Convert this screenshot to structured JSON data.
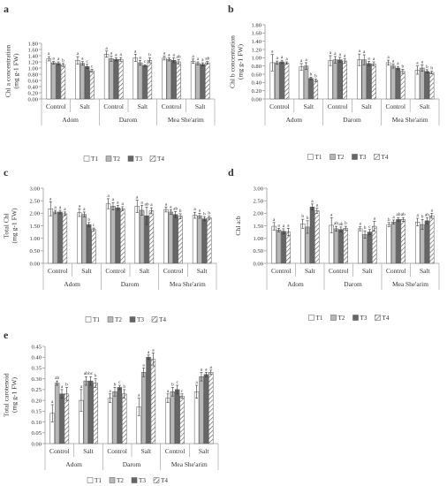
{
  "styles": {
    "T1": {
      "fill": "#ffffff"
    },
    "T2": {
      "fill": "#b8b8b8"
    },
    "T3": {
      "fill": "#666666"
    },
    "T4": {
      "fill": "#ffffff",
      "hatch": true
    }
  },
  "chart_data": [
    {
      "type": "bar",
      "panel_letter": "a",
      "ylabel_lines": [
        "Chl a concentration",
        "(mg g-1 FW)"
      ],
      "ylim": [
        0,
        1.8
      ],
      "yticks": [
        "0.00",
        "0.20",
        "0.40",
        "0.60",
        "0.80",
        "1.00",
        "1.20",
        "1.40",
        "1.60",
        "1.80"
      ],
      "groups": [
        "Adom",
        "Darom",
        "Mea She'arim"
      ],
      "conditions": [
        "Control",
        "Salt"
      ],
      "legend": [
        "T1",
        "T2",
        "T3",
        "T4"
      ],
      "values": [
        [
          1.3,
          1.17,
          1.15,
          1.1
        ],
        [
          1.25,
          1.15,
          1.05,
          0.91
        ],
        [
          1.45,
          1.3,
          1.28,
          1.28
        ],
        [
          1.33,
          1.17,
          1.08,
          1.25
        ],
        [
          1.32,
          1.28,
          1.25,
          1.2
        ],
        [
          1.22,
          1.15,
          1.12,
          1.17
        ]
      ],
      "errors": [
        [
          0.07,
          0.04,
          0.05,
          0.05
        ],
        [
          0.12,
          0.06,
          0.07,
          0.05
        ],
        [
          0.1,
          0.08,
          0.05,
          0.06
        ],
        [
          0.12,
          0.08,
          0.03,
          0.08
        ],
        [
          0.06,
          0.05,
          0.08,
          0.07
        ],
        [
          0.07,
          0.05,
          0.05,
          0.04
        ]
      ],
      "letters": [
        [
          "a",
          "a",
          "a",
          "b"
        ],
        [
          "a",
          "a",
          "c",
          "c"
        ],
        [
          "a",
          "a",
          "a",
          "a"
        ],
        [
          "a",
          "a",
          "c",
          "b"
        ],
        [
          "a",
          "a",
          "a",
          "ab"
        ],
        [
          "a",
          "a",
          "a",
          "ab"
        ]
      ]
    },
    {
      "type": "bar",
      "panel_letter": "b",
      "ylabel_lines": [
        "Chl b concentration",
        "(mg g-1 FW)"
      ],
      "ylim": [
        0,
        1.8
      ],
      "yticks": [
        "0.00",
        "0.20",
        "0.40",
        "0.60",
        "0.80",
        "1.00",
        "1.20",
        "1.40",
        "1.60",
        "1.80"
      ],
      "groups": [
        "Adom",
        "Darom",
        "Mea She'arim"
      ],
      "conditions": [
        "Control",
        "Salt"
      ],
      "legend": [
        "T1",
        "T2",
        "T3",
        "T4"
      ],
      "values": [
        [
          0.88,
          0.88,
          0.9,
          0.87
        ],
        [
          0.78,
          0.8,
          0.5,
          0.45
        ],
        [
          0.93,
          0.95,
          0.95,
          0.92
        ],
        [
          0.95,
          0.95,
          0.86,
          0.85
        ],
        [
          0.88,
          0.8,
          0.75,
          0.67
        ],
        [
          0.7,
          0.75,
          0.67,
          0.64
        ]
      ],
      "errors": [
        [
          0.2,
          0.04,
          0.04,
          0.03
        ],
        [
          0.08,
          0.08,
          0.03,
          0.03
        ],
        [
          0.12,
          0.08,
          0.06,
          0.05
        ],
        [
          0.14,
          0.12,
          0.05,
          0.05
        ],
        [
          0.06,
          0.05,
          0.04,
          0.05
        ],
        [
          0.1,
          0.08,
          0.04,
          0.03
        ]
      ],
      "letters": [
        [
          "a",
          "a",
          "a",
          "a"
        ],
        [
          "a",
          "a",
          "b",
          "b"
        ],
        [
          "a",
          "a",
          "a",
          "a"
        ],
        [
          "a",
          "a",
          "a",
          "a"
        ],
        [
          "a",
          "a",
          "a",
          "b"
        ],
        [
          "a",
          "a",
          "b",
          "b"
        ]
      ]
    },
    {
      "type": "bar",
      "panel_letter": "c",
      "ylabel_lines": [
        "Total Chl",
        "(mg g-1 FW)"
      ],
      "ylim": [
        0,
        3
      ],
      "yticks": [
        "0.00",
        "0.50",
        "1.00",
        "1.50",
        "2.00",
        "2.50",
        "3.00"
      ],
      "groups": [
        "Adom",
        "Darom",
        "Mea She'arim"
      ],
      "conditions": [
        "Control",
        "Salt"
      ],
      "legend": [
        "T1",
        "T2",
        "T3",
        "T4"
      ],
      "values": [
        [
          2.18,
          2.05,
          2.05,
          1.98
        ],
        [
          2.02,
          1.95,
          1.55,
          1.35
        ],
        [
          2.38,
          2.28,
          2.22,
          2.18
        ],
        [
          2.28,
          2.12,
          1.9,
          2.1
        ],
        [
          2.15,
          2.05,
          1.95,
          1.88
        ],
        [
          1.92,
          1.9,
          1.78,
          1.82
        ]
      ],
      "errors": [
        [
          0.28,
          0.07,
          0.07,
          0.07
        ],
        [
          0.15,
          0.1,
          0.08,
          0.06
        ],
        [
          0.2,
          0.15,
          0.1,
          0.08
        ],
        [
          0.25,
          0.2,
          0.35,
          0.12
        ],
        [
          0.1,
          0.09,
          0.12,
          0.1
        ],
        [
          0.12,
          0.1,
          0.08,
          0.06
        ]
      ],
      "letters": [
        [
          "a",
          "a",
          "a",
          "a"
        ],
        [
          "a",
          "a",
          "b",
          "c"
        ],
        [
          "a",
          "a",
          "a",
          "a"
        ],
        [
          "a",
          "a",
          "ab",
          "a"
        ],
        [
          "a",
          "a",
          "ab",
          "b"
        ],
        [
          "a",
          "a",
          "b",
          "b"
        ]
      ]
    },
    {
      "type": "bar",
      "panel_letter": "d",
      "ylabel_lines": [
        "Chl a:b"
      ],
      "ylim": [
        0,
        3
      ],
      "yticks": [
        "0.00",
        "0.50",
        "1.00",
        "1.50",
        "2.00",
        "2.50",
        "3.00"
      ],
      "groups": [
        "Adom",
        "Darom",
        "Mea She'arim"
      ],
      "conditions": [
        "Control",
        "Salt"
      ],
      "legend": [
        "T1",
        "T2",
        "T3",
        "T4"
      ],
      "values": [
        [
          1.48,
          1.33,
          1.28,
          1.25
        ],
        [
          1.58,
          1.45,
          2.25,
          2.1
        ],
        [
          1.52,
          1.38,
          1.35,
          1.4
        ],
        [
          1.38,
          1.15,
          1.25,
          1.48
        ],
        [
          1.55,
          1.65,
          1.75,
          1.75
        ],
        [
          1.65,
          1.55,
          1.7,
          1.9
        ]
      ],
      "errors": [
        [
          0.15,
          0.07,
          0.1,
          0.15
        ],
        [
          0.18,
          0.25,
          0.12,
          0.1
        ],
        [
          0.3,
          0.1,
          0.1,
          0.08
        ],
        [
          0.08,
          0.15,
          0.1,
          0.2
        ],
        [
          0.08,
          0.08,
          0.08,
          0.08
        ],
        [
          0.15,
          0.2,
          0.12,
          0.1
        ]
      ],
      "letters": [
        [
          "a",
          "a",
          "a",
          "a"
        ],
        [
          "b",
          "b",
          "a",
          "a"
        ],
        [
          "a",
          "ab",
          "ab",
          "b"
        ],
        [
          "a",
          "b",
          "c",
          "a"
        ],
        [
          "b",
          "a",
          "ab",
          "ab"
        ],
        [
          "a",
          "b",
          "ab",
          "a"
        ]
      ]
    },
    {
      "type": "bar",
      "panel_letter": "e",
      "ylabel_lines": [
        "Total carotenoid",
        "(mg g-1 FW)"
      ],
      "ylim": [
        0,
        0.45
      ],
      "yticks": [
        "0.00",
        "0.05",
        "0.10",
        "0.15",
        "0.20",
        "0.25",
        "0.30",
        "0.35",
        "0.40",
        "0.45"
      ],
      "groups": [
        "Adom",
        "Darom",
        "Mea She'arim"
      ],
      "conditions": [
        "Control",
        "Salt"
      ],
      "legend": [
        "T1",
        "T2",
        "T3",
        "T4"
      ],
      "values": [
        [
          0.14,
          0.28,
          0.23,
          0.23
        ],
        [
          0.2,
          0.29,
          0.29,
          0.28
        ],
        [
          0.21,
          0.24,
          0.26,
          0.23
        ],
        [
          0.17,
          0.33,
          0.4,
          0.39
        ],
        [
          0.21,
          0.24,
          0.25,
          0.22
        ],
        [
          0.24,
          0.31,
          0.32,
          0.33
        ]
      ],
      "errors": [
        [
          0.04,
          0.01,
          0.02,
          0.03
        ],
        [
          0.05,
          0.02,
          0.02,
          0.02
        ],
        [
          0.02,
          0.02,
          0.01,
          0.02
        ],
        [
          0.04,
          0.02,
          0.01,
          0.03
        ],
        [
          0.02,
          0.02,
          0.02,
          0.01
        ],
        [
          0.03,
          0.02,
          0.01,
          0.01
        ]
      ],
      "letters": [
        [
          "a",
          "ab",
          "a",
          "b"
        ],
        [
          "a",
          "ab",
          "bc",
          "b"
        ],
        [
          "a",
          "b",
          "c",
          "b"
        ],
        [
          "a",
          "a",
          "a",
          "a"
        ],
        [
          "a",
          "b",
          "c",
          "c"
        ],
        [
          "a",
          "a",
          "a",
          "a"
        ]
      ]
    }
  ]
}
